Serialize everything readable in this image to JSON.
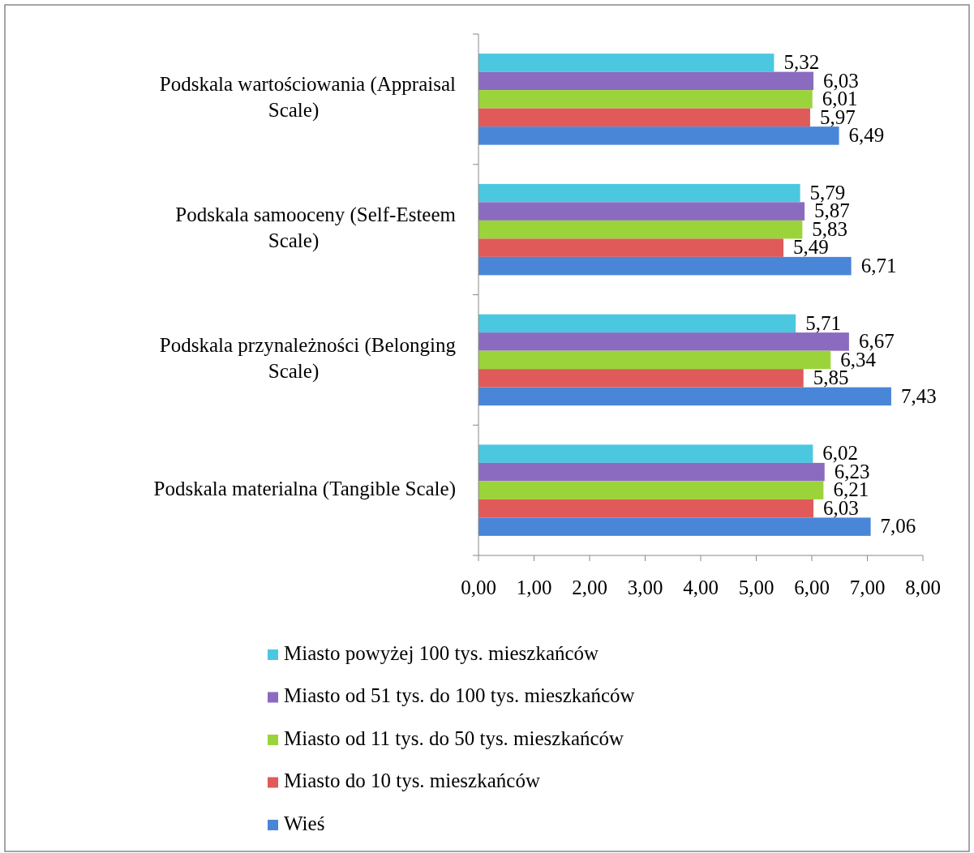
{
  "chart_data": {
    "type": "bar",
    "orientation": "horizontal",
    "categories": [
      "Podskala wartościowania  (Appraisal Scale)",
      "Podskala samooceny (Self-Esteem Scale)",
      "Podskala przynależności (Belonging Scale)",
      "Podskala materialna (Tangible Scale)"
    ],
    "series": [
      {
        "name": "Miasto powyżej 100 tys. mieszkańców",
        "color": "#4bc8e0",
        "values": [
          5.32,
          5.79,
          5.71,
          6.02
        ],
        "value_labels": [
          "5,32",
          "5,79",
          "5,71",
          "6,02"
        ]
      },
      {
        "name": "Miasto od 51 tys. do 100 tys. mieszkańców",
        "color": "#8b6bbf",
        "values": [
          6.03,
          5.87,
          6.67,
          6.23
        ],
        "value_labels": [
          "6,03",
          "5,87",
          "6,67",
          "6,23"
        ]
      },
      {
        "name": "Miasto od 11 tys. do 50 tys. mieszkańców",
        "color": "#9bd43a",
        "values": [
          6.01,
          5.83,
          6.34,
          6.21
        ],
        "value_labels": [
          "6,01",
          "5,83",
          "6,34",
          "6,21"
        ]
      },
      {
        "name": "Miasto do 10 tys. mieszkańców",
        "color": "#e05a5a",
        "values": [
          5.97,
          5.49,
          5.85,
          6.03
        ],
        "value_labels": [
          "5,97",
          "5,49",
          "5,85",
          "6,03"
        ]
      },
      {
        "name": "Wieś",
        "color": "#4a86d8",
        "values": [
          6.49,
          6.71,
          7.43,
          7.06
        ],
        "value_labels": [
          "6,49",
          "6,71",
          "7,43",
          "7,06"
        ]
      }
    ],
    "xlim": [
      0,
      8
    ],
    "xticks": [
      {
        "value": 0,
        "label": "0,00"
      },
      {
        "value": 1,
        "label": "1,00"
      },
      {
        "value": 2,
        "label": "2,00"
      },
      {
        "value": 3,
        "label": "3,00"
      },
      {
        "value": 4,
        "label": "4,00"
      },
      {
        "value": 5,
        "label": "5,00"
      },
      {
        "value": 6,
        "label": "6,00"
      },
      {
        "value": 7,
        "label": "7,00"
      },
      {
        "value": 8,
        "label": "8,00"
      }
    ],
    "legend": "bottom"
  }
}
